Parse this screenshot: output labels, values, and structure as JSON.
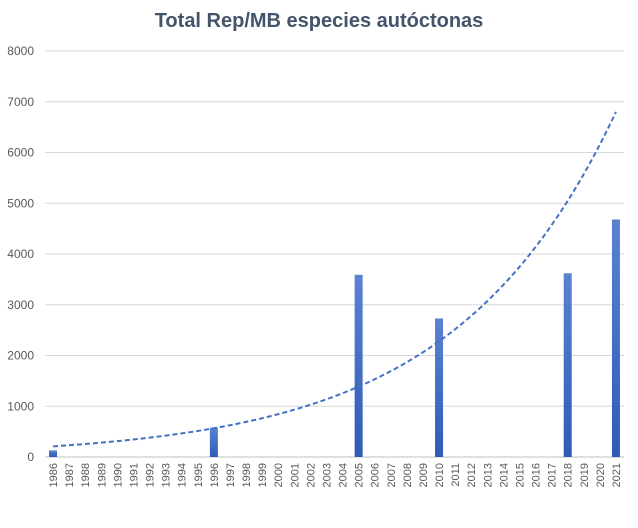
{
  "chart_data": {
    "type": "bar",
    "title": "Total Rep/MB especies autóctonas",
    "xlabel": "",
    "ylabel": "",
    "ylim": [
      0,
      8000
    ],
    "yticks": [
      0,
      1000,
      2000,
      3000,
      4000,
      5000,
      6000,
      7000,
      8000
    ],
    "grid": true,
    "categories": [
      "1986",
      "1987",
      "1988",
      "1989",
      "1990",
      "1991",
      "1992",
      "1993",
      "1994",
      "1995",
      "1996",
      "1997",
      "1998",
      "1999",
      "2000",
      "2001",
      "2002",
      "2003",
      "2004",
      "2005",
      "2006",
      "2007",
      "2008",
      "2009",
      "2010",
      "2011",
      "2012",
      "2013",
      "2014",
      "2015",
      "2016",
      "2017",
      "2018",
      "2019",
      "2020",
      "2021"
    ],
    "values": [
      130,
      0,
      0,
      0,
      0,
      0,
      0,
      0,
      0,
      0,
      580,
      0,
      0,
      0,
      0,
      0,
      0,
      0,
      0,
      3590,
      0,
      0,
      0,
      0,
      2730,
      0,
      0,
      0,
      0,
      0,
      0,
      0,
      3620,
      0,
      0,
      4680
    ],
    "trendline": {
      "type": "exponential",
      "style": "dashed",
      "color": "#4472c4",
      "start_value": 210,
      "end_value": 6800
    },
    "colors": {
      "bar": "#4472c4",
      "bar_dark": "#2f5bb7",
      "grid": "#d9d9d9",
      "axis": "#bfbfbf"
    }
  }
}
